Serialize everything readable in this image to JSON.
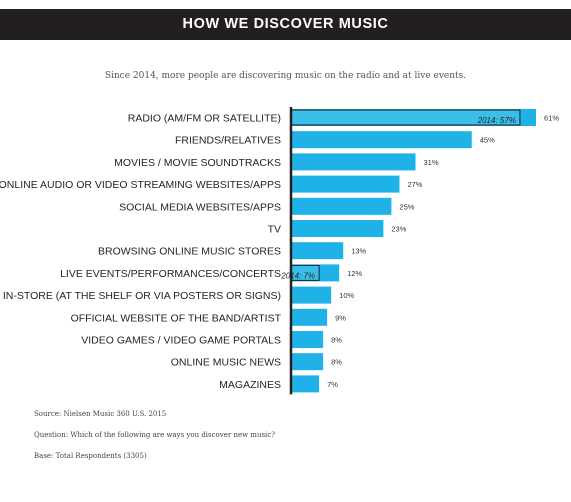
{
  "header": {
    "title": "HOW WE DISCOVER MUSIC",
    "subtitle": "Since 2014, more people are discovering music on the radio and at live events."
  },
  "chart_data": {
    "type": "bar",
    "orientation": "horizontal",
    "title": "HOW WE DISCOVER MUSIC",
    "subtitle": "Since 2014, more people are discovering music on the radio and at live events.",
    "categories": [
      "RADIO (AM/FM OR SATELLITE)",
      "FRIENDS/RELATIVES",
      "MOVIES / MOVIE SOUNDTRACKS",
      "ONLINE AUDIO OR VIDEO STREAMING WEBSITES/APPS",
      "SOCIAL MEDIA WEBSITES/APPS",
      "TV",
      "BROWSING ONLINE MUSIC STORES",
      "LIVE EVENTS/PERFORMANCES/CONCERTS",
      "IN-STORE (AT THE SHELF OR VIA POSTERS OR SIGNS)",
      "OFFICIAL WEBSITE OF THE BAND/ARTIST",
      "VIDEO GAMES / VIDEO GAME PORTALS",
      "ONLINE MUSIC NEWS",
      "MAGAZINES"
    ],
    "values": [
      61,
      45,
      31,
      27,
      25,
      23,
      13,
      12,
      10,
      9,
      8,
      8,
      7
    ],
    "value_labels": [
      "61%",
      "45%",
      "31%",
      "27%",
      "25%",
      "23%",
      "13%",
      "12%",
      "10%",
      "9%",
      "8%",
      "8%",
      "7%"
    ],
    "comparison_2014": [
      {
        "category": "RADIO (AM/FM OR SATELLITE)",
        "value": 57,
        "label": "2014: 57%"
      },
      {
        "category": "LIVE EVENTS/PERFORMANCES/CONCERTS",
        "value": 7,
        "label": "2014: 7%"
      }
    ],
    "xlim": [
      0,
      61
    ],
    "grid": false,
    "legend": "none",
    "bar_color": "#1eb2e6",
    "overlay_color": "#3bbfe9",
    "axis_color": "#231f20"
  },
  "footer": {
    "source": "Source: Nielsen Music 360 U.S. 2015",
    "question": "Question: Which of the following are ways you discover new music?",
    "base": "Base: Total Respondents (3305)"
  }
}
